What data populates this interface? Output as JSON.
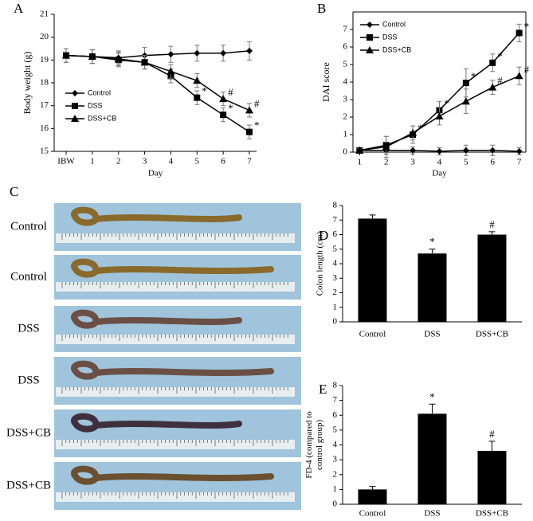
{
  "chart_data": [
    {
      "type": "line",
      "panel": "A",
      "x_label": "Day",
      "y_label": "Body weight (g)",
      "categories": [
        "IBW",
        "1",
        "2",
        "3",
        "4",
        "5",
        "6",
        "7"
      ],
      "ylim": [
        15,
        21
      ],
      "yticks": [
        15,
        16,
        17,
        18,
        19,
        20,
        21
      ],
      "series": [
        {
          "name": "Control",
          "marker": "diamond",
          "color": "#000000",
          "values": [
            19.2,
            19.15,
            19.1,
            19.2,
            19.25,
            19.3,
            19.3,
            19.4
          ],
          "errors": [
            0.3,
            0.3,
            0.3,
            0.35,
            0.35,
            0.35,
            0.35,
            0.4
          ],
          "annotations": [
            null,
            null,
            null,
            null,
            null,
            null,
            null,
            null
          ]
        },
        {
          "name": "DSS",
          "marker": "square",
          "color": "#000000",
          "values": [
            19.2,
            19.15,
            19.0,
            18.9,
            18.3,
            17.35,
            16.6,
            15.85
          ],
          "errors": [
            0.3,
            0.3,
            0.3,
            0.3,
            0.3,
            0.3,
            0.3,
            0.3
          ],
          "annotations": [
            null,
            null,
            null,
            null,
            null,
            "*",
            "*",
            "*"
          ]
        },
        {
          "name": "DSS+CB",
          "marker": "triangle",
          "color": "#000000",
          "values": [
            19.2,
            19.15,
            19.05,
            18.9,
            18.5,
            18.1,
            17.3,
            16.8
          ],
          "errors": [
            0.3,
            0.3,
            0.3,
            0.3,
            0.3,
            0.3,
            0.3,
            0.3
          ],
          "annotations": [
            null,
            null,
            null,
            null,
            null,
            null,
            "#",
            "#"
          ]
        }
      ]
    },
    {
      "type": "line",
      "panel": "B",
      "x_label": "Day",
      "y_label": "DAI score",
      "x": [
        1,
        2,
        3,
        4,
        5,
        6,
        7
      ],
      "xlim": [
        0.75,
        7.25
      ],
      "xticks": [
        1,
        2,
        3,
        4,
        5,
        6,
        7
      ],
      "ylim": [
        0,
        8
      ],
      "yticks": [
        0,
        1,
        2,
        3,
        4,
        5,
        6,
        7
      ],
      "series": [
        {
          "name": "Control",
          "marker": "diamond",
          "color": "#000000",
          "values": [
            0.1,
            0.1,
            0.1,
            0.05,
            0.1,
            0.1,
            0.05
          ],
          "errors": [
            0.1,
            0.2,
            0.2,
            0.2,
            0.3,
            0.3,
            0.2
          ],
          "annotations": [
            null,
            null,
            null,
            null,
            null,
            null,
            null
          ]
        },
        {
          "name": "DSS",
          "marker": "square",
          "color": "#000000",
          "values": [
            0.1,
            0.4,
            1.0,
            2.4,
            3.95,
            5.1,
            6.8
          ],
          "errors": [
            0.1,
            0.5,
            0.5,
            0.5,
            0.8,
            0.5,
            0.5
          ],
          "annotations": [
            null,
            null,
            "*",
            "*",
            "*",
            "*",
            "*"
          ]
        },
        {
          "name": "DSS+CB",
          "marker": "triangle",
          "color": "#000000",
          "values": [
            0.1,
            0.3,
            1.1,
            2.05,
            2.9,
            3.7,
            4.35
          ],
          "errors": [
            0.1,
            0.6,
            0.4,
            0.5,
            0.7,
            0.4,
            0.5
          ],
          "annotations": [
            null,
            null,
            null,
            null,
            null,
            "#",
            "#"
          ]
        }
      ]
    },
    {
      "type": "bar",
      "panel": "D",
      "y_label_lines": [
        "Colon length (cm)"
      ],
      "categories": [
        "Control",
        "DSS",
        "DSS+CB"
      ],
      "values": [
        7.1,
        4.7,
        6.0
      ],
      "errors": [
        0.25,
        0.3,
        0.2
      ],
      "annotations": [
        null,
        "*",
        "#"
      ],
      "color": "#000000",
      "ylim": [
        0,
        8
      ],
      "yticks": [
        0,
        1,
        2,
        3,
        4,
        5,
        6,
        7,
        8
      ]
    },
    {
      "type": "bar",
      "panel": "E",
      "y_label_lines": [
        "FD-4 (compared to",
        "control group)"
      ],
      "categories": [
        "Control",
        "DSS",
        "DSS+CB"
      ],
      "values": [
        1.0,
        6.1,
        3.6
      ],
      "errors": [
        0.2,
        0.65,
        0.65
      ],
      "annotations": [
        null,
        "*",
        "#"
      ],
      "color": "#000000",
      "ylim": [
        0,
        8
      ],
      "yticks": [
        0,
        1,
        2,
        3,
        4,
        5,
        6,
        7,
        8
      ]
    }
  ],
  "photo_panel": {
    "panel": "C",
    "labels": [
      "Control",
      "Control",
      "DSS",
      "DSS",
      "DSS+CB",
      "DSS+CB"
    ]
  }
}
